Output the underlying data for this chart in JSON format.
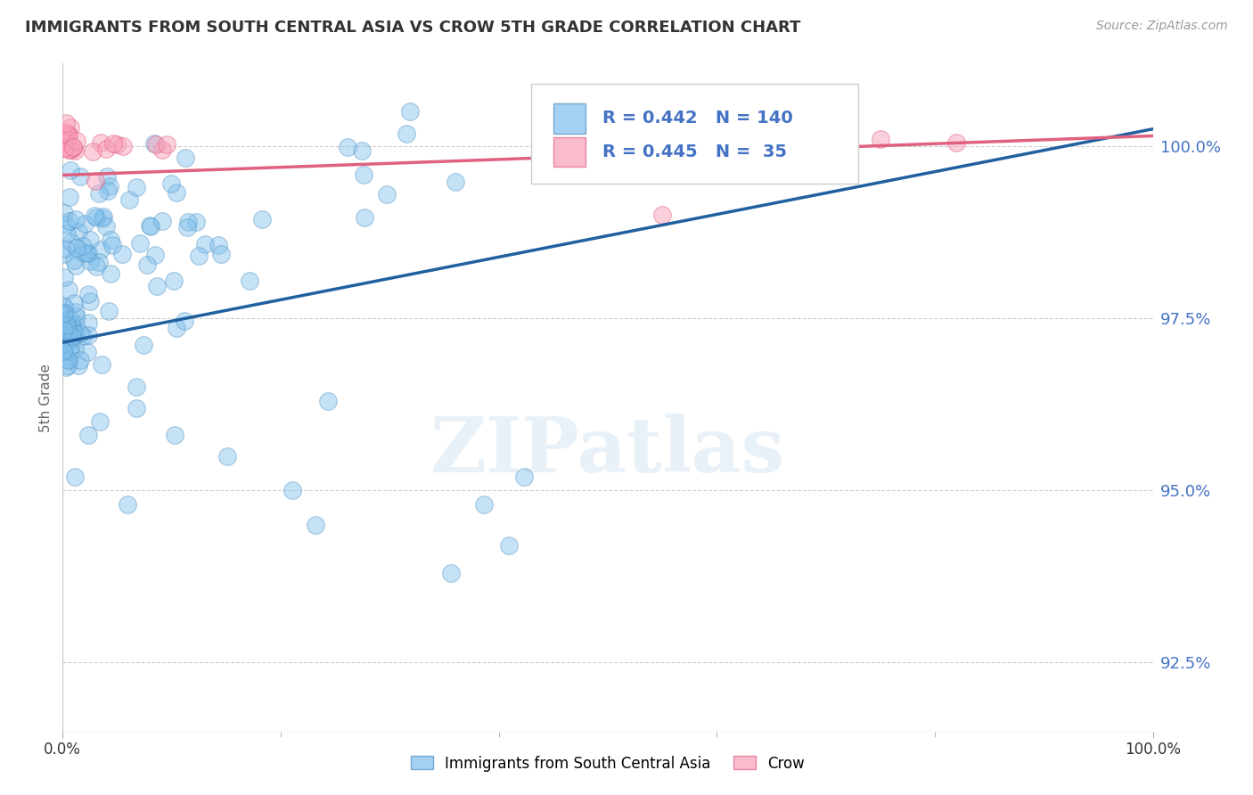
{
  "title": "IMMIGRANTS FROM SOUTH CENTRAL ASIA VS CROW 5TH GRADE CORRELATION CHART",
  "source": "Source: ZipAtlas.com",
  "ylabel": "5th Grade",
  "xlim": [
    0.0,
    100.0
  ],
  "ylim": [
    91.5,
    101.2
  ],
  "yticks": [
    92.5,
    95.0,
    97.5,
    100.0
  ],
  "legend_label1": "Immigrants from South Central Asia",
  "legend_label2": "Crow",
  "blue_R": 0.442,
  "blue_N": 140,
  "pink_R": 0.445,
  "pink_N": 35,
  "blue_color": "#7fbfed",
  "blue_edge_color": "#5090c0",
  "blue_line_color": "#2060a0",
  "pink_color": "#f8a0b8",
  "pink_edge_color": "#e06080",
  "pink_line_color": "#e06080",
  "blue_trend_x": [
    0.0,
    100.0
  ],
  "blue_trend_y": [
    97.15,
    100.25
  ],
  "pink_trend_x": [
    0.0,
    100.0
  ],
  "pink_trend_y": [
    99.58,
    100.15
  ],
  "watermark": "ZIPatlas",
  "background_color": "#ffffff",
  "grid_color": "#cccccc"
}
